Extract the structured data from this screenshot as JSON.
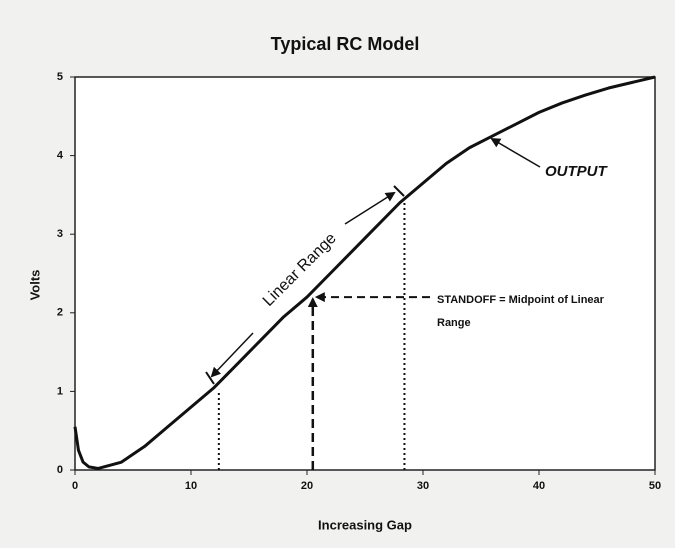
{
  "chart_data": {
    "type": "line",
    "title": "Typical RC Model",
    "xlabel": "Increasing Gap",
    "ylabel": "Volts",
    "x": [
      0,
      0.3,
      0.7,
      1.2,
      2,
      4,
      6,
      8,
      10,
      12,
      14,
      16,
      18,
      20,
      22,
      24,
      26,
      28,
      30,
      32,
      34,
      36,
      38,
      40,
      42,
      44,
      46,
      48,
      50
    ],
    "series": [
      {
        "name": "OUTPUT",
        "color": "#111111",
        "values": [
          0.55,
          0.25,
          0.1,
          0.04,
          0.02,
          0.1,
          0.3,
          0.55,
          0.8,
          1.05,
          1.35,
          1.65,
          1.95,
          2.2,
          2.5,
          2.8,
          3.1,
          3.4,
          3.65,
          3.9,
          4.1,
          4.25,
          4.4,
          4.55,
          4.67,
          4.77,
          4.86,
          4.93,
          5
        ]
      }
    ],
    "xlim": [
      0,
      50
    ],
    "xticks": [
      0,
      10,
      20,
      30,
      40,
      50
    ],
    "ylim": [
      0,
      5
    ],
    "yticks": [
      0,
      1,
      2,
      3,
      4,
      5
    ],
    "reference_lines": [
      {
        "x": 12.4,
        "y": 1.02
      },
      {
        "x": 28.4,
        "y": 3.43
      }
    ],
    "standoff": {
      "x": 20.5,
      "y": 2.2
    },
    "annotations": [
      "Linear Range",
      "STANDOFF = Midpoint of Linear",
      "Range"
    ]
  }
}
